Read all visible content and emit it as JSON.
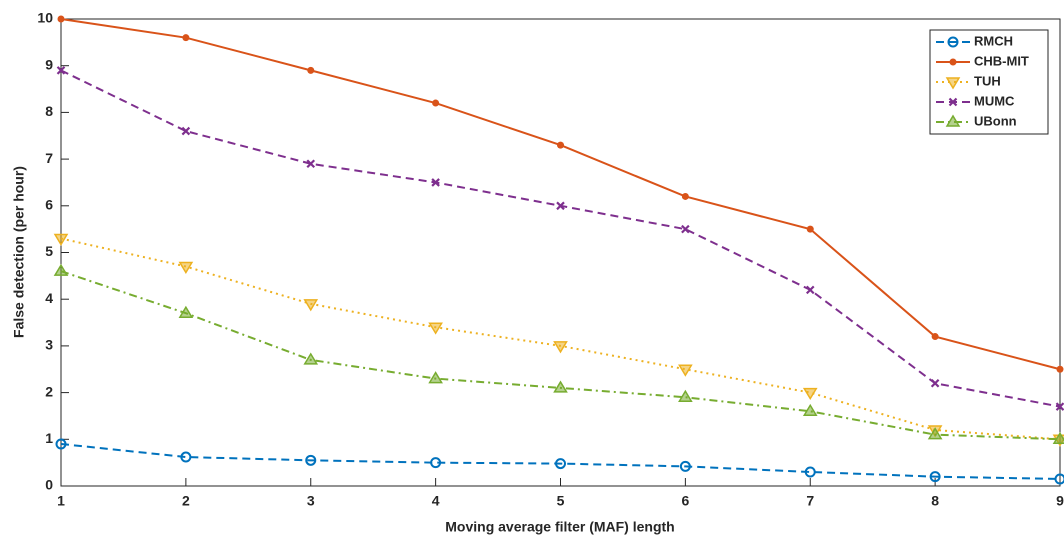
{
  "chart_data": {
    "type": "line",
    "xlabel": "Moving average filter (MAF) length",
    "ylabel": "False detection (per hour)",
    "x": [
      1,
      2,
      3,
      4,
      5,
      6,
      7,
      8,
      9
    ],
    "xlim": [
      1,
      9
    ],
    "xticks": [
      1,
      2,
      3,
      4,
      5,
      6,
      7,
      8,
      9
    ],
    "ylim": [
      0,
      10
    ],
    "yticks": [
      0,
      1,
      2,
      3,
      4,
      5,
      6,
      7,
      8,
      9,
      10
    ],
    "grid": false,
    "legend": "upper right",
    "series": [
      {
        "name": "RMCH",
        "color": "#0072BD",
        "style": "dashed",
        "marker": "circle",
        "values": [
          0.9,
          0.62,
          0.55,
          0.5,
          0.48,
          0.42,
          0.3,
          0.2,
          0.15
        ]
      },
      {
        "name": "CHB-MIT",
        "color": "#D95319",
        "style": "solid",
        "marker": "dot",
        "values": [
          10,
          9.6,
          8.9,
          8.2,
          7.3,
          6.2,
          5.5,
          3.2,
          2.5
        ]
      },
      {
        "name": "TUH",
        "color": "#EDB120",
        "style": "dotted",
        "marker": "triangle-down",
        "values": [
          5.3,
          4.7,
          3.9,
          3.4,
          3.0,
          2.5,
          2.0,
          1.2,
          1.0
        ]
      },
      {
        "name": "MUMC",
        "color": "#7E2F8E",
        "style": "dashed",
        "marker": "x",
        "values": [
          8.9,
          7.6,
          6.9,
          6.5,
          6.0,
          5.5,
          4.2,
          2.2,
          1.7
        ]
      },
      {
        "name": "UBonn",
        "color": "#77AC30",
        "style": "dashdot",
        "marker": "triangle-up",
        "values": [
          4.6,
          3.7,
          2.7,
          2.3,
          2.1,
          1.9,
          1.6,
          1.1,
          1.0
        ]
      }
    ]
  }
}
